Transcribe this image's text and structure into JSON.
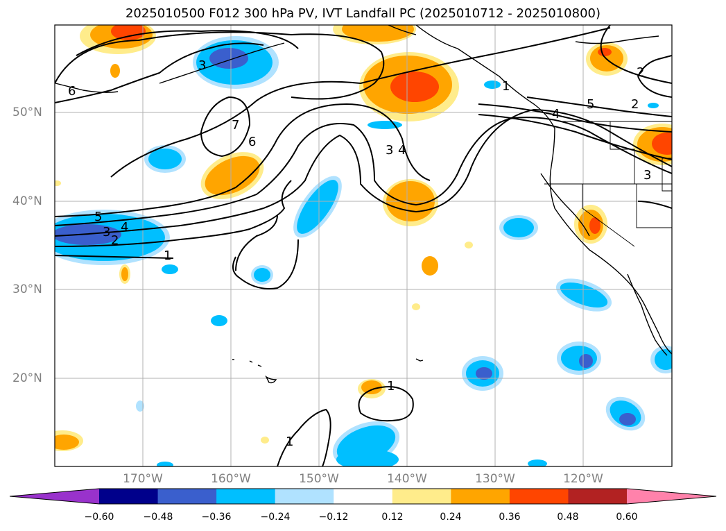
{
  "title": "2025010500 F012 300 hPa PV, IVT Landfall PC (2025010712 - 2025010800)",
  "lat_labels": [
    "50°N",
    "40°N",
    "30°N",
    "20°N"
  ],
  "lon_labels": [
    "170°W",
    "160°W",
    "150°W",
    "140°W",
    "130°W",
    "120°W"
  ],
  "colorbar": {
    "colors": [
      "#9932cc",
      "#00008b",
      "#3a5fcd",
      "#00bfff",
      "#b0e2ff",
      "#ffffff",
      "#ffec8b",
      "#ffa500",
      "#ff4500",
      "#b22222",
      "#ff82ab"
    ],
    "tick_labels": [
      "−0.60",
      "−0.48",
      "−0.36",
      "−0.24",
      "−0.12",
      "0.12",
      "0.24",
      "0.36",
      "0.48",
      "0.60"
    ]
  },
  "contour_labels": [
    "6",
    "3",
    "7",
    "6",
    "3",
    "4",
    "5",
    "2",
    "1",
    "4",
    "2",
    "3",
    "5",
    "4",
    "3",
    "2",
    "1",
    "1",
    "1"
  ]
}
